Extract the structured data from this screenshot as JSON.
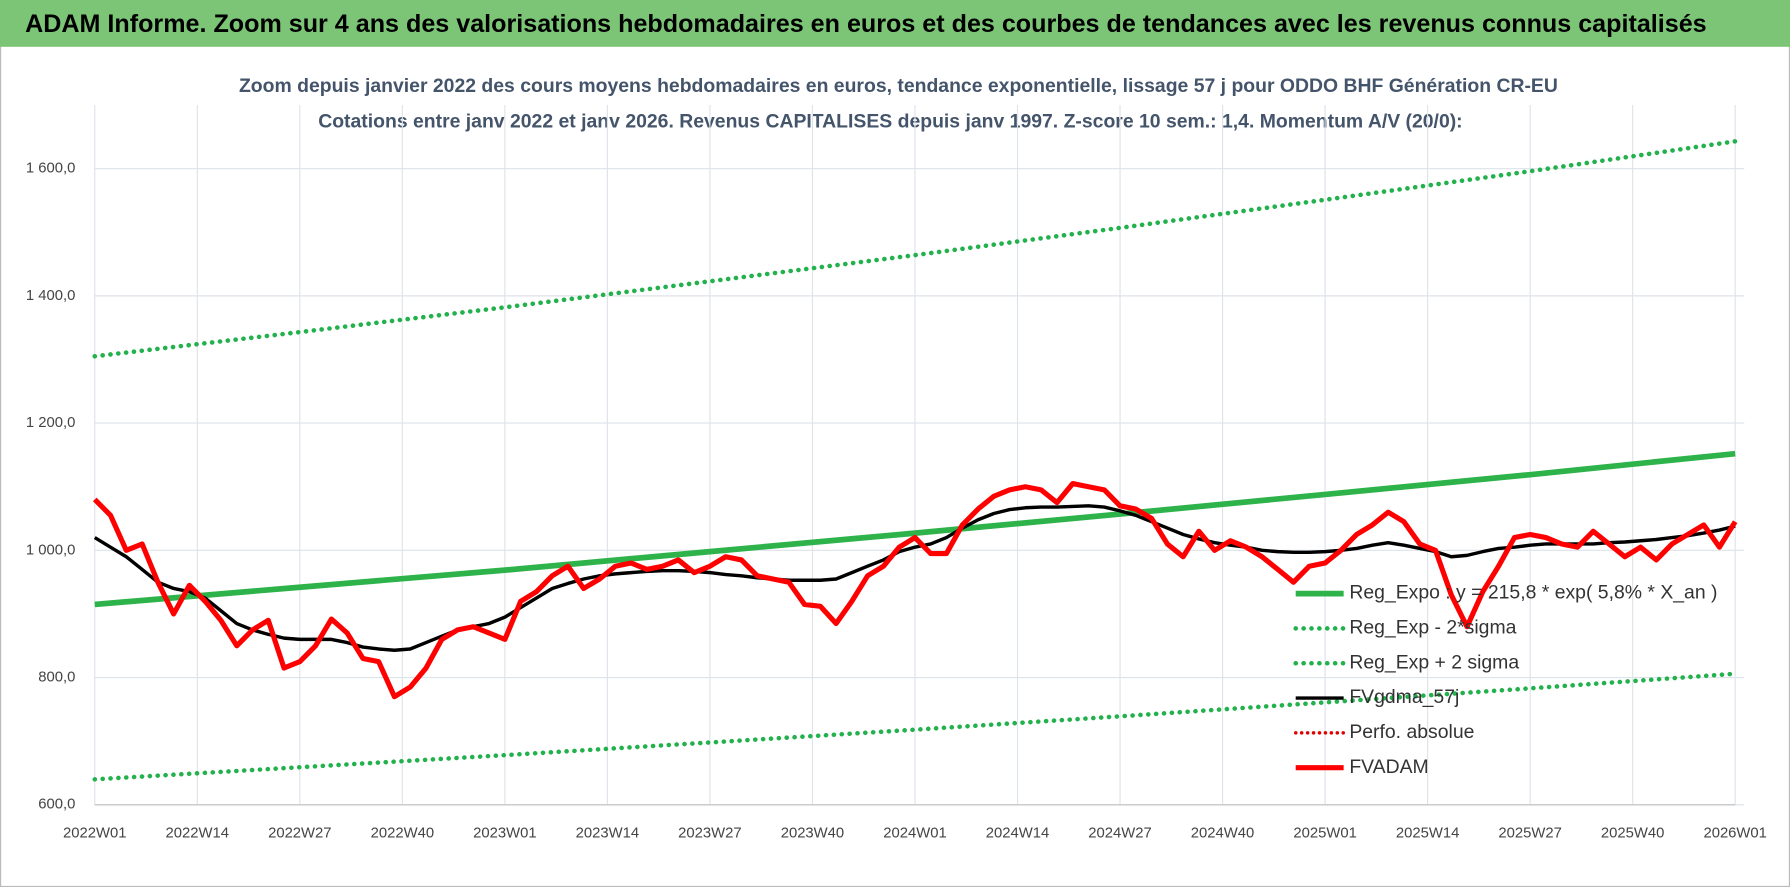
{
  "header": "ADAM Informe. Zoom sur 4 ans des valorisations hebdomadaires en euros et des courbes de tendances avec les revenus connus capitalisés",
  "chart_data": {
    "type": "line",
    "title": "Zoom depuis janvier 2022 des cours moyens hebdomadaires en euros, tendance exponentielle, lissage 57 j pour ODDO BHF Génération CR-EU",
    "subtitle": "Cotations entre janv 2022 et janv 2026. Revenus CAPITALISES depuis janv 1997. Z-score 10 sem.: 1,4. Momentum A/V (20/0):",
    "xlim": [
      0,
      208
    ],
    "xticks": [
      {
        "value": 0,
        "label": "2022W01"
      },
      {
        "value": 13,
        "label": "2022W14"
      },
      {
        "value": 26,
        "label": "2022W27"
      },
      {
        "value": 39,
        "label": "2022W40"
      },
      {
        "value": 52,
        "label": "2023W01"
      },
      {
        "value": 65,
        "label": "2023W14"
      },
      {
        "value": 78,
        "label": "2023W27"
      },
      {
        "value": 91,
        "label": "2023W40"
      },
      {
        "value": 104,
        "label": "2024W01"
      },
      {
        "value": 117,
        "label": "2024W14"
      },
      {
        "value": 130,
        "label": "2024W27"
      },
      {
        "value": 143,
        "label": "2024W40"
      },
      {
        "value": 156,
        "label": "2025W01"
      },
      {
        "value": 169,
        "label": "2025W14"
      },
      {
        "value": 182,
        "label": "2025W27"
      },
      {
        "value": 195,
        "label": "2025W40"
      },
      {
        "value": 208,
        "label": "2026W01"
      }
    ],
    "ylim": [
      600,
      1700
    ],
    "yticks": [
      {
        "value": 600,
        "label": "600,0"
      },
      {
        "value": 800,
        "label": "800,0"
      },
      {
        "value": 1000,
        "label": "1 000,0"
      },
      {
        "value": 1200,
        "label": "1 200,0"
      },
      {
        "value": 1400,
        "label": "1 400,0"
      },
      {
        "value": 1600,
        "label": "1 600,0"
      }
    ],
    "grid": true,
    "legend": "lower right",
    "x": [
      0,
      2,
      4,
      6,
      8,
      10,
      12,
      14,
      16,
      18,
      20,
      22,
      24,
      26,
      28,
      30,
      32,
      34,
      36,
      38,
      40,
      42,
      44,
      46,
      48,
      50,
      52,
      54,
      56,
      58,
      60,
      62,
      64,
      66,
      68,
      70,
      72,
      74,
      76,
      78,
      80,
      82,
      84,
      86,
      88,
      90,
      92,
      94,
      96,
      98,
      100,
      102,
      104,
      106,
      108,
      110,
      112,
      114,
      116,
      118,
      120,
      122,
      124,
      126,
      128,
      130,
      132,
      134,
      136,
      138,
      140,
      142,
      144,
      146,
      148,
      150,
      152,
      154,
      156,
      158,
      160,
      162,
      164,
      166,
      168,
      170,
      172,
      174,
      176,
      178,
      180,
      182,
      184,
      186,
      188,
      190,
      192,
      194,
      196,
      198,
      200,
      202,
      204,
      206,
      208
    ],
    "series": [
      {
        "name": "Reg_Expo : y = 215,8 * exp( 5,8% *  X_an )",
        "color": "#2db34a",
        "style": "solid",
        "width": 5,
        "x": [
          0,
          26,
          52,
          78,
          104,
          130,
          156,
          182,
          208
        ],
        "values": [
          915,
          942,
          969,
          998,
          1027,
          1057,
          1088,
          1119,
          1152
        ]
      },
      {
        "name": "Reg_Exp - 2*sigma",
        "color": "#22b14c",
        "style": "dotted",
        "width": 4,
        "x": [
          0,
          26,
          52,
          78,
          104,
          130,
          156,
          182,
          208
        ],
        "values": [
          640,
          659,
          678,
          698,
          718,
          739,
          761,
          783,
          806
        ]
      },
      {
        "name": "Reg_Exp + 2 sigma",
        "color": "#22b14c",
        "style": "dotted",
        "width": 4,
        "x": [
          0,
          26,
          52,
          78,
          104,
          130,
          156,
          182,
          208
        ],
        "values": [
          1305,
          1343,
          1382,
          1423,
          1464,
          1507,
          1551,
          1596,
          1643
        ]
      },
      {
        "name": "FVgdma_57j",
        "color": "#000000",
        "style": "solid",
        "width": 3,
        "values": [
          1020,
          1005,
          990,
          970,
          950,
          940,
          935,
          925,
          905,
          885,
          875,
          868,
          862,
          860,
          860,
          860,
          855,
          848,
          845,
          843,
          845,
          855,
          865,
          875,
          880,
          885,
          895,
          910,
          925,
          940,
          948,
          955,
          960,
          963,
          965,
          967,
          968,
          968,
          967,
          965,
          962,
          960,
          957,
          955,
          953,
          953,
          953,
          955,
          965,
          975,
          985,
          998,
          1005,
          1010,
          1020,
          1035,
          1048,
          1058,
          1064,
          1067,
          1068,
          1068,
          1069,
          1070,
          1068,
          1062,
          1055,
          1045,
          1035,
          1025,
          1018,
          1012,
          1008,
          1005,
          1000,
          998,
          997,
          997,
          998,
          1000,
          1003,
          1008,
          1012,
          1008,
          1003,
          998,
          990,
          992,
          998,
          1003,
          1005,
          1008,
          1010,
          1010,
          1010,
          1010,
          1012,
          1013,
          1015,
          1017,
          1020,
          1023,
          1027,
          1032,
          1038
        ]
      },
      {
        "name": "Perfo. absolue",
        "color": "#e00000",
        "style": "dotted",
        "width": 3
      },
      {
        "name": "FVADAM",
        "color": "#ff0000",
        "style": "solid",
        "width": 4.5,
        "values": [
          1080,
          1055,
          1000,
          1010,
          950,
          900,
          945,
          920,
          890,
          850,
          875,
          890,
          815,
          825,
          850,
          892,
          870,
          830,
          825,
          770,
          785,
          815,
          860,
          875,
          880,
          870,
          860,
          920,
          935,
          960,
          975,
          940,
          955,
          975,
          980,
          970,
          975,
          985,
          965,
          975,
          990,
          985,
          960,
          955,
          950,
          915,
          912,
          885,
          920,
          960,
          975,
          1005,
          1020,
          995,
          995,
          1040,
          1065,
          1085,
          1095,
          1100,
          1095,
          1075,
          1105,
          1100,
          1095,
          1070,
          1065,
          1050,
          1010,
          990,
          1030,
          1000,
          1015,
          1005,
          990,
          970,
          950,
          975,
          980,
          1000,
          1025,
          1040,
          1060,
          1045,
          1010,
          1000,
          930,
          880,
          935,
          975,
          1020,
          1025,
          1020,
          1010,
          1005,
          1030,
          1010,
          990,
          1005,
          985,
          1010,
          1025,
          1040,
          1005,
          1045
        ]
      }
    ]
  }
}
